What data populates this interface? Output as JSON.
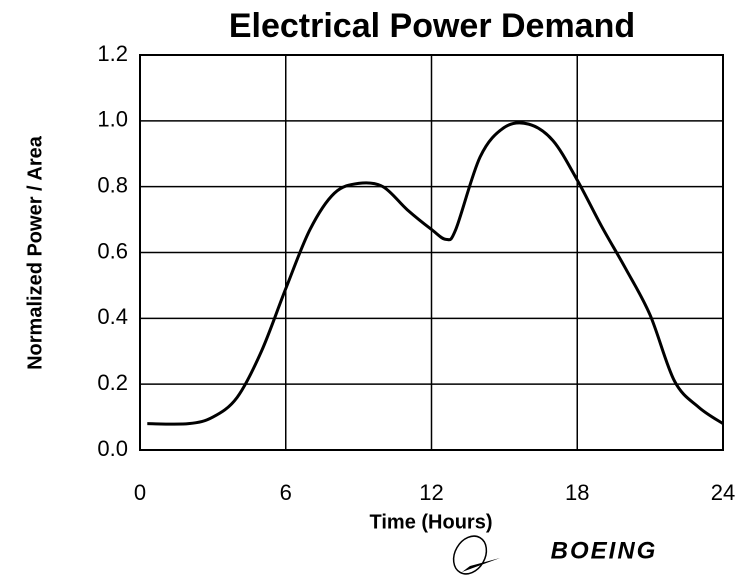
{
  "chart_data": {
    "type": "line",
    "title": "Electrical Power Demand",
    "xlabel": "Time (Hours)",
    "ylabel": "Normalized Power / Area",
    "x": [
      0.3,
      2,
      3,
      4,
      5,
      6,
      7,
      8,
      9,
      10,
      11,
      12,
      12.6,
      13,
      14,
      15,
      16,
      17,
      18,
      19,
      20,
      21,
      22,
      23,
      24
    ],
    "values": [
      0.08,
      0.08,
      0.1,
      0.16,
      0.3,
      0.49,
      0.67,
      0.78,
      0.81,
      0.8,
      0.73,
      0.67,
      0.64,
      0.67,
      0.89,
      0.98,
      0.99,
      0.94,
      0.82,
      0.68,
      0.55,
      0.41,
      0.21,
      0.13,
      0.08
    ],
    "color": "#000000",
    "xlim": [
      0,
      24
    ],
    "xticks": [
      0,
      6,
      12,
      18,
      24
    ],
    "ylim": [
      0,
      1.2
    ],
    "yticks": [
      {
        "value": 0,
        "label": "0.0"
      },
      0.2,
      0.4,
      0.6,
      0.8,
      {
        "value": 1,
        "label": "1.0"
      },
      1.2
    ],
    "grid": true
  },
  "brand": "BOEING"
}
